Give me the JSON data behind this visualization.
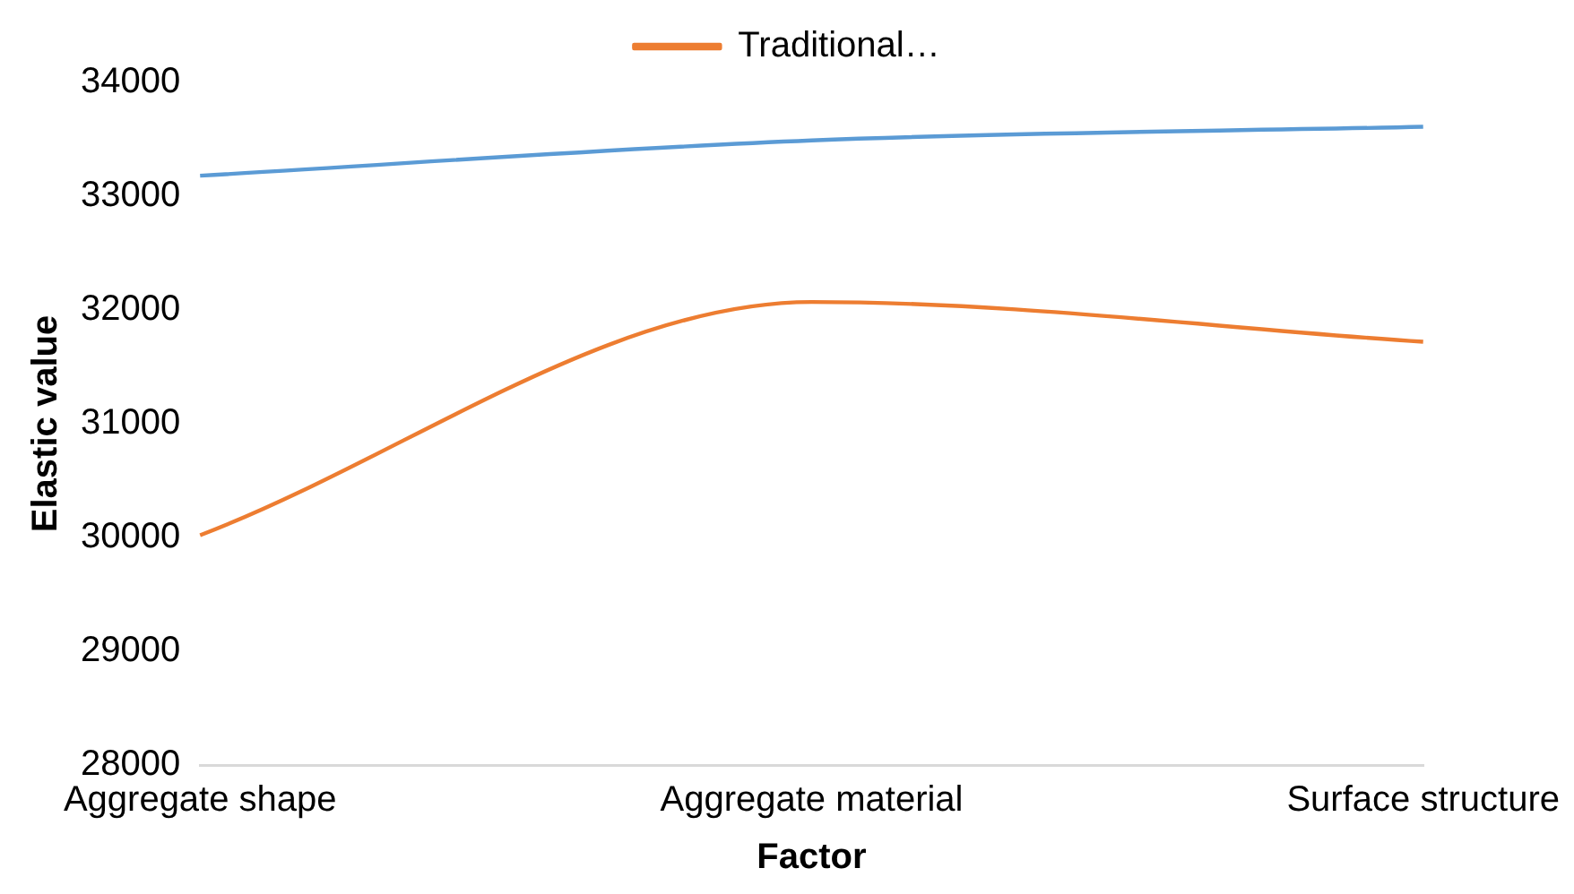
{
  "chart_data": {
    "type": "line",
    "xlabel": "Factor",
    "ylabel": "Elastic value",
    "categories": [
      "Aggregate shape",
      "Aggregate material",
      "Surface structure"
    ],
    "series": [
      {
        "color": "#5b9bd5",
        "values": [
          33180,
          33490,
          33610
        ]
      },
      {
        "name": "Traditional…",
        "color": "#ed7d31",
        "values": [
          30020,
          32070,
          31720
        ]
      }
    ],
    "ylim": [
      28000,
      34000
    ],
    "yticks": [
      28000,
      29000,
      30000,
      31000,
      32000,
      33000,
      34000
    ],
    "grid": false,
    "legend": "top",
    "marker": "none",
    "line_style": "solid"
  }
}
